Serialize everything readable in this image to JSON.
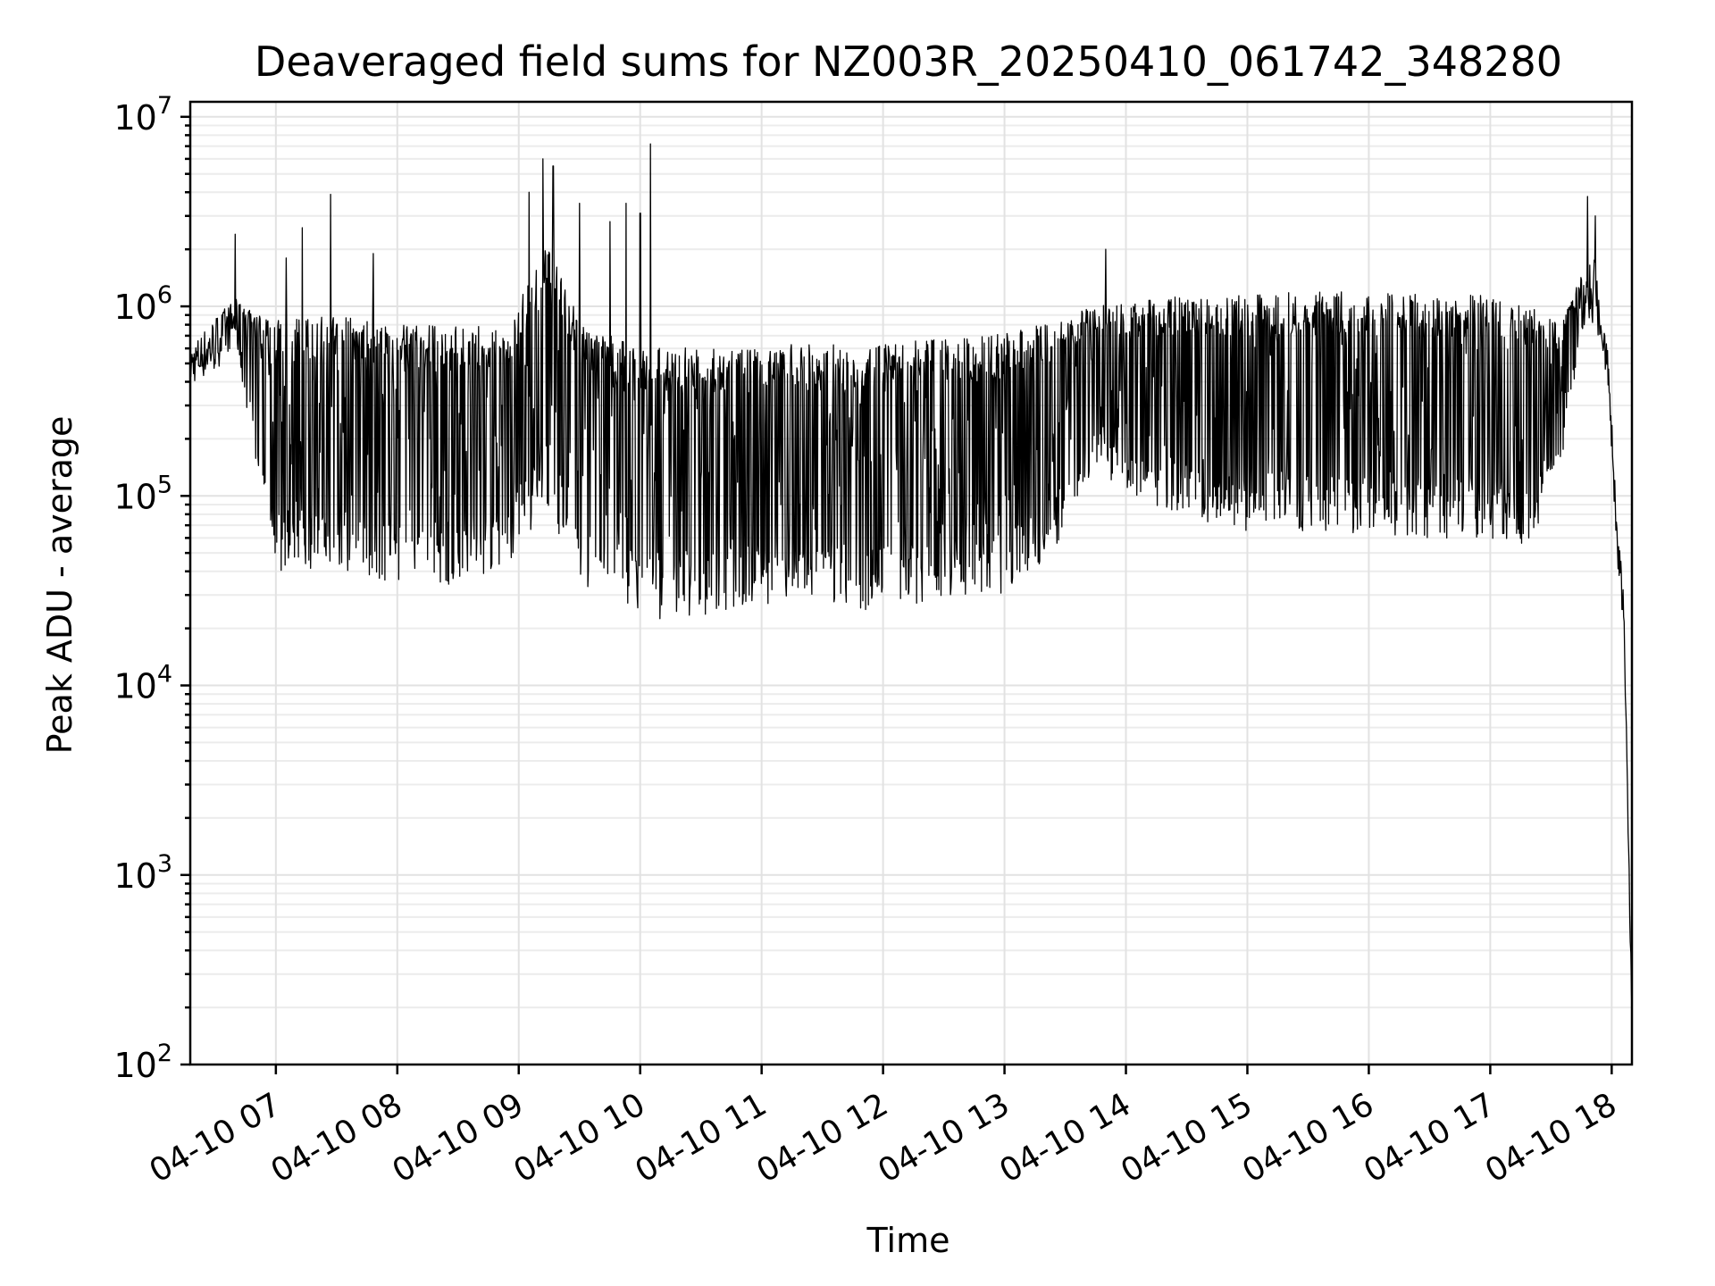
{
  "chart_data": {
    "type": "line",
    "title": "Deaveraged field sums for NZ003R_20250410_061742_348280",
    "xlabel": "Time",
    "ylabel": "Peak ADU - average",
    "yscale": "log",
    "ylim": [
      100,
      12000000
    ],
    "xlim": [
      "2025-04-10 06:17:42",
      "2025-04-10 18:10:00"
    ],
    "grid": true,
    "grid_minor": true,
    "line_color": "#000000",
    "x_ticks": [
      {
        "time": "2025-04-10 07:00",
        "label": "04-10 07"
      },
      {
        "time": "2025-04-10 08:00",
        "label": "04-10 08"
      },
      {
        "time": "2025-04-10 09:00",
        "label": "04-10 09"
      },
      {
        "time": "2025-04-10 10:00",
        "label": "04-10 10"
      },
      {
        "time": "2025-04-10 11:00",
        "label": "04-10 11"
      },
      {
        "time": "2025-04-10 12:00",
        "label": "04-10 12"
      },
      {
        "time": "2025-04-10 13:00",
        "label": "04-10 13"
      },
      {
        "time": "2025-04-10 14:00",
        "label": "04-10 14"
      },
      {
        "time": "2025-04-10 15:00",
        "label": "04-10 15"
      },
      {
        "time": "2025-04-10 16:00",
        "label": "04-10 16"
      },
      {
        "time": "2025-04-10 17:00",
        "label": "04-10 17"
      },
      {
        "time": "2025-04-10 18:00",
        "label": "04-10 18"
      }
    ],
    "y_ticks": [
      {
        "value": 100,
        "base": "10",
        "exp": "2"
      },
      {
        "value": 1000,
        "base": "10",
        "exp": "3"
      },
      {
        "value": 10000,
        "base": "10",
        "exp": "4"
      },
      {
        "value": 100000,
        "base": "10",
        "exp": "5"
      },
      {
        "value": 1000000,
        "base": "10",
        "exp": "6"
      },
      {
        "value": 10000000,
        "base": "10",
        "exp": "7"
      }
    ],
    "series": [
      {
        "envelope": [
          {
            "time": "2025-04-10 06:17",
            "high": 600000,
            "low": 380000
          },
          {
            "time": "2025-04-10 06:30",
            "high": 900000,
            "low": 450000
          },
          {
            "time": "2025-04-10 06:40",
            "high": 1100000,
            "low": 650000
          },
          {
            "time": "2025-04-10 06:50",
            "high": 900000,
            "low": 150000
          },
          {
            "time": "2025-04-10 07:00",
            "high": 850000,
            "low": 40000
          },
          {
            "time": "2025-04-10 07:30",
            "high": 900000,
            "low": 40000
          },
          {
            "time": "2025-04-10 08:00",
            "high": 800000,
            "low": 35000
          },
          {
            "time": "2025-04-10 08:30",
            "high": 800000,
            "low": 33000
          },
          {
            "time": "2025-04-10 08:55",
            "high": 800000,
            "low": 45000
          },
          {
            "time": "2025-04-10 09:15",
            "high": 2500000,
            "low": 90000
          },
          {
            "time": "2025-04-10 09:30",
            "high": 800000,
            "low": 30000
          },
          {
            "time": "2025-04-10 10:00",
            "high": 620000,
            "low": 22000
          },
          {
            "time": "2025-04-10 10:30",
            "high": 600000,
            "low": 23000
          },
          {
            "time": "2025-04-10 11:00",
            "high": 620000,
            "low": 26000
          },
          {
            "time": "2025-04-10 11:30",
            "high": 640000,
            "low": 27000
          },
          {
            "time": "2025-04-10 12:00",
            "high": 640000,
            "low": 24000
          },
          {
            "time": "2025-04-10 12:30",
            "high": 680000,
            "low": 30000
          },
          {
            "time": "2025-04-10 13:00",
            "high": 720000,
            "low": 30000
          },
          {
            "time": "2025-04-10 13:25",
            "high": 850000,
            "low": 52000
          },
          {
            "time": "2025-04-10 13:45",
            "high": 1000000,
            "low": 150000
          },
          {
            "time": "2025-04-10 14:00",
            "high": 1050000,
            "low": 100000
          },
          {
            "time": "2025-04-10 14:30",
            "high": 1150000,
            "low": 75000
          },
          {
            "time": "2025-04-10 15:00",
            "high": 1150000,
            "low": 65000
          },
          {
            "time": "2025-04-10 15:30",
            "high": 1200000,
            "low": 65000
          },
          {
            "time": "2025-04-10 16:00",
            "high": 1200000,
            "low": 60000
          },
          {
            "time": "2025-04-10 16:30",
            "high": 1150000,
            "low": 60000
          },
          {
            "time": "2025-04-10 17:00",
            "high": 1150000,
            "low": 60000
          },
          {
            "time": "2025-04-10 17:20",
            "high": 1000000,
            "low": 55000
          },
          {
            "time": "2025-04-10 17:35",
            "high": 800000,
            "low": 150000
          },
          {
            "time": "2025-04-10 17:45",
            "high": 1500000,
            "low": 700000
          },
          {
            "time": "2025-04-10 17:52",
            "high": 1800000,
            "low": 800000
          },
          {
            "time": "2025-04-10 17:58",
            "high": 600000,
            "low": 400000
          },
          {
            "time": "2025-04-10 18:03",
            "high": 70000,
            "low": 40000
          },
          {
            "time": "2025-04-10 18:06",
            "high": 30000,
            "low": 20000
          },
          {
            "time": "2025-04-10 18:10",
            "high": 200,
            "low": 150
          }
        ],
        "spikes": [
          {
            "time": "2025-04-10 06:40",
            "value": 2400000
          },
          {
            "time": "2025-04-10 07:05",
            "value": 1800000
          },
          {
            "time": "2025-04-10 07:13",
            "value": 2600000
          },
          {
            "time": "2025-04-10 07:27",
            "value": 3900000
          },
          {
            "time": "2025-04-10 07:48",
            "value": 1900000
          },
          {
            "time": "2025-04-10 09:05",
            "value": 4000000
          },
          {
            "time": "2025-04-10 09:12",
            "value": 6000000
          },
          {
            "time": "2025-04-10 09:17",
            "value": 5500000
          },
          {
            "time": "2025-04-10 09:30",
            "value": 3500000
          },
          {
            "time": "2025-04-10 09:45",
            "value": 2800000
          },
          {
            "time": "2025-04-10 09:53",
            "value": 3500000
          },
          {
            "time": "2025-04-10 10:00",
            "value": 3100000
          },
          {
            "time": "2025-04-10 10:05",
            "value": 7200000
          },
          {
            "time": "2025-04-10 13:50",
            "value": 2000000
          },
          {
            "time": "2025-04-10 17:48",
            "value": 3800000
          },
          {
            "time": "2025-04-10 17:52",
            "value": 3000000
          }
        ]
      }
    ]
  }
}
